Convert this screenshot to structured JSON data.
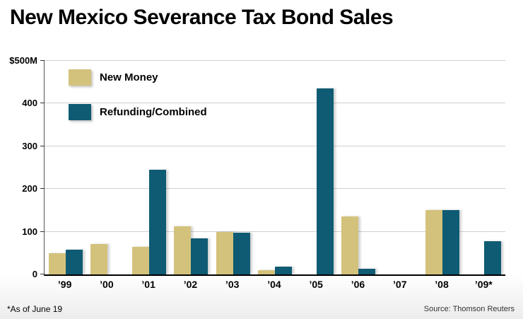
{
  "title": "New Mexico Severance Tax Bond Sales",
  "footnote": "*As of June 19",
  "source": "Source: Thomson Reuters",
  "chart_data": {
    "type": "bar",
    "title": "New Mexico Severance Tax Bond Sales",
    "categories": [
      "’99",
      "’00",
      "’01",
      "’02",
      "’03",
      "’04",
      "’05",
      "’06",
      "’07",
      "’08",
      "’09*"
    ],
    "series": [
      {
        "name": "New Money",
        "color": "#d3c27c",
        "values": [
          50,
          72,
          65,
          112,
          100,
          10,
          0,
          135,
          0,
          150,
          0
        ]
      },
      {
        "name": "Refunding/Combined",
        "color": "#0f5b73",
        "values": [
          58,
          0,
          245,
          85,
          98,
          18,
          435,
          13,
          0,
          150,
          78
        ]
      }
    ],
    "ylim": [
      0,
      500
    ],
    "yticks": [
      0,
      100,
      200,
      300,
      400,
      500
    ],
    "ytop_label": "$500M",
    "xlabel": "",
    "ylabel": "",
    "grid": true,
    "legend_position": "top-left-inside"
  }
}
